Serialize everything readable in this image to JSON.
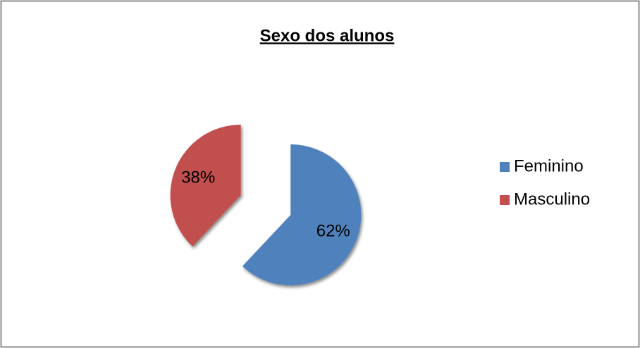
{
  "chart_data": {
    "type": "pie",
    "title": "Sexo dos alunos",
    "categories": [
      "Feminino",
      "Masculino"
    ],
    "values": [
      62,
      38
    ],
    "value_labels": [
      "62%",
      "38%"
    ],
    "colors": [
      "#4f81bd",
      "#c0504d"
    ],
    "legend": "right"
  }
}
